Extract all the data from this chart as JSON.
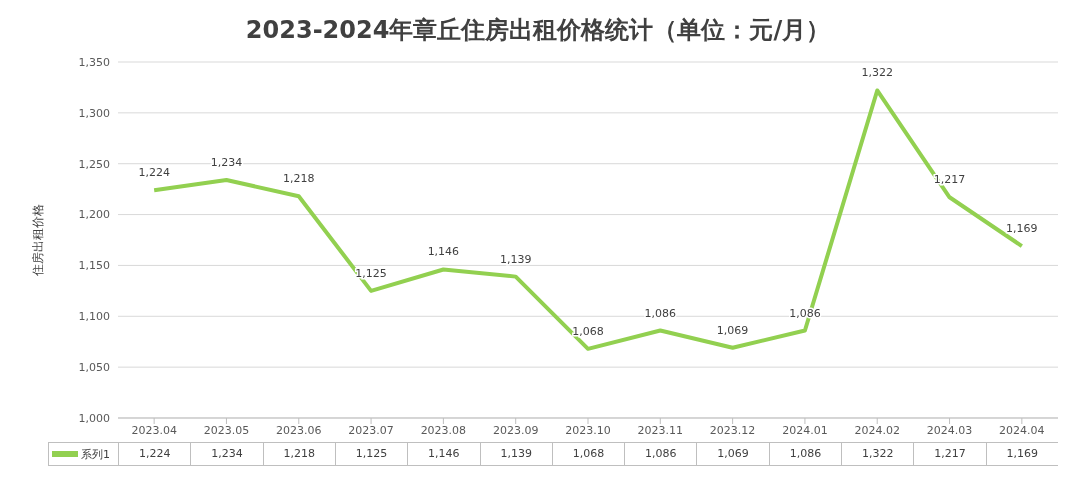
{
  "chart_data": {
    "type": "line",
    "title": "2023-2024年章丘住房出租价格统计（单位：元/月）",
    "ylabel": "住房出租价格",
    "categories": [
      "2023.04",
      "2023.05",
      "2023.06",
      "2023.07",
      "2023.08",
      "2023.09",
      "2023.10",
      "2023.11",
      "2023.12",
      "2024.01",
      "2024.02",
      "2024.03",
      "2024.04"
    ],
    "series": [
      {
        "name": "系列1",
        "color": "#92d050",
        "values": [
          1224,
          1234,
          1218,
          1125,
          1146,
          1139,
          1068,
          1086,
          1069,
          1086,
          1322,
          1217,
          1169
        ],
        "value_labels": [
          "1,224",
          "1,234",
          "1,218",
          "1,125",
          "1,146",
          "1,139",
          "1,068",
          "1,086",
          "1,069",
          "1,086",
          "1,322",
          "1,217",
          "1,169"
        ]
      }
    ],
    "ylim": [
      1000,
      1350
    ],
    "yticks": [
      {
        "value": 1000,
        "label": "1,000"
      },
      {
        "value": 1050,
        "label": "1,050"
      },
      {
        "value": 1100,
        "label": "1,100"
      },
      {
        "value": 1150,
        "label": "1,150"
      },
      {
        "value": 1200,
        "label": "1,200"
      },
      {
        "value": 1250,
        "label": "1,250"
      },
      {
        "value": 1300,
        "label": "1,300"
      },
      {
        "value": 1350,
        "label": "1,350"
      }
    ],
    "grid": "y",
    "legend": "bottom",
    "marker": "none",
    "line_style": "solid"
  }
}
